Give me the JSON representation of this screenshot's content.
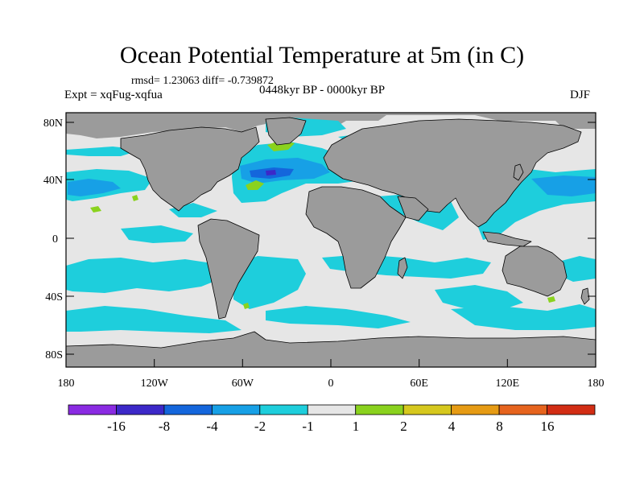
{
  "title": "Ocean Potential Temperature at 5m (in C)",
  "stats": "rmsd= 1.23063 diff= -0.739872",
  "experiment": "Expt = xqFug-xqfua",
  "period": "0448kyr BP - 0000kyr BP",
  "season": "DJF",
  "y_axis_labels": [
    "80N",
    "40N",
    "0",
    "40S",
    "80S"
  ],
  "x_axis_labels": [
    "180",
    "120W",
    "60W",
    "0",
    "60E",
    "120E",
    "180"
  ],
  "colorbar": {
    "colors": [
      "#8a2be2",
      "#3c28c8",
      "#1466dc",
      "#17a0e6",
      "#1ecedc",
      "#e6e6e6",
      "#8ad21e",
      "#d6c81e",
      "#e69b14",
      "#e6641e",
      "#d22d14"
    ],
    "labels": [
      "-16",
      "-8",
      "-4",
      "-2",
      "-1",
      "1",
      "2",
      "4",
      "8",
      "16"
    ]
  },
  "colors": {
    "land": "#9b9b9b",
    "ocean_neutral": "#e6e6e6",
    "cooling_light": "#1ecedc",
    "cooling_mid": "#17a0e6",
    "cooling_strong": "#1466dc",
    "cooling_max": "#3c28c8",
    "warming_light": "#8ad21e"
  }
}
